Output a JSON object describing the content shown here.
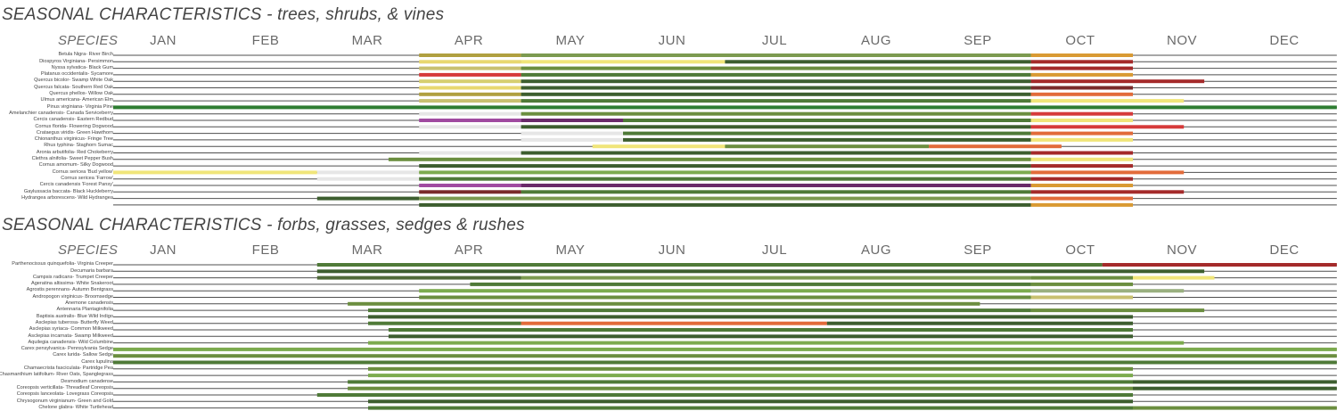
{
  "colors": {
    "dormant": "#4f4f4f",
    "evergreen": "#2e7d32",
    "leaf_light": "#7cab4e",
    "leaf_dark": "#3d5e2f",
    "flower_white": "#e6e6e6",
    "flower_yellow": "#f0e57a",
    "flower_pink": "#a04aa0",
    "fall_red": "#a42a2a",
    "fall_orange": "#e26b3a",
    "fall_gold": "#d99a33"
  },
  "months": [
    "JAN",
    "FEB",
    "MAR",
    "APR",
    "MAY",
    "JUN",
    "JUL",
    "AUG",
    "SEP",
    "OCT",
    "NOV",
    "DEC"
  ],
  "chart_data": [
    {
      "type": "gantt",
      "title": "SEASONAL CHARACTERISTICS - trees, shrubs, & vines",
      "species_header": "SPECIES",
      "x_unit": "month (0 = start of JAN, 12 = end of DEC)",
      "rows": [
        {
          "label": "Betula Nigra- River Birch",
          "segments": [
            [
              3,
              4,
              "#b0a040"
            ],
            [
              4,
              9,
              "#7c9a50"
            ],
            [
              9,
              10,
              "#d99a33"
            ]
          ]
        },
        {
          "label": "Diospyros Virginiana- Persimmon",
          "segments": [
            [
              3,
              4,
              "#e8d870"
            ],
            [
              4,
              6,
              "#f0e57a"
            ],
            [
              6,
              9,
              "#3d5e2f"
            ],
            [
              9,
              10,
              "#a42a2a"
            ]
          ]
        },
        {
          "label": "Nyssa sylvatica- Black Gum",
          "segments": [
            [
              3,
              4,
              "#c8c070"
            ],
            [
              4,
              9,
              "#6b8e3f"
            ],
            [
              9,
              10,
              "#a42a2a"
            ]
          ]
        },
        {
          "label": "Platanus occidentalis- Sycamore",
          "segments": [
            [
              3,
              4,
              "#d63a3a"
            ],
            [
              4,
              9,
              "#4f7a38"
            ],
            [
              9,
              10,
              "#d99a33"
            ]
          ]
        },
        {
          "label": "Quercus bicolor- Swamp White Oak",
          "segments": [
            [
              3,
              4,
              "#d6cf70"
            ],
            [
              4,
              9,
              "#3d5e2f"
            ],
            [
              9,
              10.7,
              "#a42a2a"
            ]
          ]
        },
        {
          "label": "Quercus falcata- Southern Red Oak",
          "segments": [
            [
              3,
              4,
              "#e8d870"
            ],
            [
              4,
              9,
              "#3d5e2f"
            ],
            [
              9,
              10,
              "#7a2a2a"
            ]
          ]
        },
        {
          "label": "Quercus phellos- Willow Oak",
          "segments": [
            [
              3,
              4,
              "#b0a040"
            ],
            [
              4,
              9,
              "#3d5e2f"
            ],
            [
              9,
              10,
              "#e26b3a"
            ]
          ]
        },
        {
          "label": "Ulmus americana- American Elm",
          "segments": [
            [
              3,
              4,
              "#c8c070"
            ],
            [
              4,
              9,
              "#4f7a38"
            ],
            [
              9,
              10.5,
              "#f0e57a"
            ]
          ]
        },
        {
          "label": "Pinus virginiana- Virginia Pine",
          "segments": [
            [
              0,
              12,
              "#2e7d32"
            ]
          ]
        },
        {
          "label": "Amelanchier canadensis- Canada Serviceberry",
          "segments": [
            [
              3,
              4,
              "#e6e6e6"
            ],
            [
              4,
              9,
              "#6b8e3f"
            ],
            [
              9,
              10,
              "#d63a3a"
            ]
          ]
        },
        {
          "label": "Cercis canadensis- Eastern Redbud",
          "segments": [
            [
              3,
              4,
              "#a04aa0"
            ],
            [
              4,
              5,
              "#6a2a6a"
            ],
            [
              5,
              9,
              "#4f7a38"
            ],
            [
              9,
              10,
              "#f0e57a"
            ]
          ]
        },
        {
          "label": "Cornus florida- Flowering Dogwood",
          "segments": [
            [
              3,
              4,
              "#e6e6e6"
            ],
            [
              4,
              9,
              "#3d5e2f"
            ],
            [
              9,
              10.5,
              "#d63a3a"
            ]
          ]
        },
        {
          "label": "Crataegus viridis- Green Hawthorn",
          "segments": [
            [
              4,
              5,
              "#e6e6e6"
            ],
            [
              5,
              9,
              "#4f7a38"
            ],
            [
              9,
              10,
              "#e26b3a"
            ]
          ]
        },
        {
          "label": "Chionanthus virginicus- Fringe Tree",
          "segments": [
            [
              4,
              5,
              "#e6e6e6"
            ],
            [
              5,
              9,
              "#3d5e2f"
            ],
            [
              9,
              10,
              "#f0e57a"
            ]
          ]
        },
        {
          "label": "Rhus typhina- Staghorn Sumac",
          "segments": [
            [
              4.7,
              6,
              "#f0e57a"
            ],
            [
              6,
              8,
              "#6b8e3f"
            ],
            [
              8,
              9.3,
              "#e26b3a"
            ]
          ]
        },
        {
          "label": "Aronia arbutifolia- Red Chokeberry",
          "segments": [
            [
              3,
              4,
              "#e6e6e6"
            ],
            [
              4,
              9,
              "#3d5e2f"
            ],
            [
              9,
              10,
              "#a42a2a"
            ]
          ]
        },
        {
          "label": "Clethra alnifolia- Sweet Pepper Bush",
          "segments": [
            [
              2.7,
              9,
              "#6b8e3f"
            ],
            [
              9,
              10,
              "#f0e57a"
            ]
          ]
        },
        {
          "label": "Cornus amomum- Silky Dogwood",
          "segments": [
            [
              3,
              9,
              "#3d5e2f"
            ],
            [
              9,
              10,
              "#a42a2a"
            ]
          ]
        },
        {
          "label": "Cornus sericea 'Bud yellow'",
          "segments": [
            [
              0,
              2,
              "#f0e57a"
            ],
            [
              2,
              3,
              "#e6e6e6"
            ],
            [
              3,
              9,
              "#7cab4e"
            ],
            [
              9,
              10.5,
              "#e26b3a"
            ]
          ]
        },
        {
          "label": "Cornus sericea 'Farrow'",
          "segments": [
            [
              2,
              3,
              "#e6e6e6"
            ],
            [
              3,
              9,
              "#4f7a38"
            ],
            [
              9,
              10,
              "#a42a2a"
            ]
          ]
        },
        {
          "label": "Cercis canadensis 'Forest Pansy'",
          "segments": [
            [
              3,
              4,
              "#a04aa0"
            ],
            [
              4,
              9,
              "#6a2a6a"
            ],
            [
              9,
              10,
              "#d99a33"
            ]
          ]
        },
        {
          "label": "Gaylussacia baccata- Black Huckleberry",
          "segments": [
            [
              3,
              4,
              "#7a2a2a"
            ],
            [
              4,
              9,
              "#4f7a38"
            ],
            [
              9,
              10.5,
              "#a42a2a"
            ]
          ]
        },
        {
          "label": "Hydrangea arborescens- Wild Hydrangea",
          "segments": [
            [
              2,
              3,
              "#3d5e2f"
            ],
            [
              3,
              9,
              "#7c9a50"
            ],
            [
              9,
              10,
              "#e26b3a"
            ]
          ]
        },
        {
          "label": "",
          "segments": [
            [
              3,
              9,
              "#3d5e2f"
            ],
            [
              9,
              10,
              "#d99a33"
            ]
          ]
        }
      ]
    },
    {
      "type": "gantt",
      "title": "SEASONAL CHARACTERISTICS - forbs, grasses, sedges & rushes",
      "species_header": "SPECIES",
      "x_unit": "month (0 = start of JAN, 12 = end of DEC)",
      "rows": [
        {
          "label": "Parthenocissus quinquefolia- Virginia Creeper",
          "segments": [
            [
              2,
              9.7,
              "#4f7a38"
            ],
            [
              9.7,
              12,
              "#a42a2a"
            ]
          ]
        },
        {
          "label": "Decumaria barbara",
          "segments": [
            [
              2,
              10,
              "#3d5e2f"
            ],
            [
              10,
              10.7,
              "#3d5e2f"
            ]
          ]
        },
        {
          "label": "Campsis radicans- Trumpet Creeper",
          "segments": [
            [
              2,
              4,
              "#4f6a38"
            ],
            [
              4,
              9,
              "#7c9a50"
            ],
            [
              9,
              10,
              "#6b8e3f"
            ],
            [
              10,
              10.8,
              "#f0e57a"
            ]
          ]
        },
        {
          "label": "Ageratina altissima- White Snakeroot",
          "segments": [
            [
              3.5,
              9,
              "#4f7a38"
            ],
            [
              9,
              10,
              "#6b8e3f"
            ]
          ]
        },
        {
          "label": "Agrostis perennans- Autumn Bentgrass",
          "segments": [
            [
              3,
              9,
              "#7cab4e"
            ],
            [
              9,
              10.5,
              "#9ab080"
            ]
          ]
        },
        {
          "label": "Andropogon virginicus- Broomsedge",
          "segments": [
            [
              3,
              9,
              "#6b8e3f"
            ],
            [
              9,
              10,
              "#c8c070"
            ]
          ]
        },
        {
          "label": "Anemone canadensis",
          "segments": [
            [
              2.3,
              8.5,
              "#6b8e3f"
            ]
          ]
        },
        {
          "label": "Antennaria Plantaginifolia",
          "segments": [
            [
              2.5,
              9,
              "#4f7a38"
            ],
            [
              9,
              10.7,
              "#6b8e3f"
            ]
          ]
        },
        {
          "label": "Baptisia australis- Blue Wild Indigo",
          "segments": [
            [
              2.5,
              10,
              "#3d5e2f"
            ]
          ]
        },
        {
          "label": "Asclepias tuberosa- Butterfly Weed",
          "segments": [
            [
              2.5,
              4,
              "#4f7a38"
            ],
            [
              4,
              7,
              "#e26b3a"
            ],
            [
              7,
              10,
              "#3d5e2f"
            ]
          ]
        },
        {
          "label": "Asclepias syriaca- Common Milkweed",
          "segments": [
            [
              2.7,
              10,
              "#4f7a38"
            ]
          ]
        },
        {
          "label": "Asclepias incarnata- Swamp Milkweed",
          "segments": [
            [
              2.7,
              10,
              "#3d5e2f"
            ]
          ]
        },
        {
          "label": "Aquilegia canadensis- Wild Columbine",
          "segments": [
            [
              2.5,
              10.5,
              "#7cab4e"
            ]
          ]
        },
        {
          "label": "Carex pensylvanica- Pennsylvania Sedge",
          "segments": [
            [
              0,
              12,
              "#7cab4e"
            ]
          ]
        },
        {
          "label": "Carex lurida- Sallow Sedge",
          "segments": [
            [
              0,
              12,
              "#6b8e3f"
            ]
          ]
        },
        {
          "label": "Carex lupulina",
          "segments": [
            [
              0,
              12,
              "#4f7a38"
            ]
          ]
        },
        {
          "label": "Chamaecrista fasciculata- Partridge Pea",
          "segments": [
            [
              2.5,
              10,
              "#6b8e3f"
            ]
          ]
        },
        {
          "label": "Chasmanthium latifolium- River Oats, Spanglegrass",
          "segments": [
            [
              2.5,
              10,
              "#7cab4e"
            ]
          ]
        },
        {
          "label": "Desmodium canadense",
          "segments": [
            [
              2.3,
              10,
              "#4f7a38"
            ],
            [
              10,
              12,
              "#3d5e2f"
            ]
          ]
        },
        {
          "label": "Coreopsis verticillata- Threadleaf Coreopsis",
          "segments": [
            [
              2.3,
              10,
              "#6b8e3f"
            ],
            [
              10,
              12,
              "#3d5e2f"
            ]
          ]
        },
        {
          "label": "Coreopsis lanceolata- Lovegrass Coreopsis",
          "segments": [
            [
              2,
              10,
              "#4f7a38"
            ]
          ]
        },
        {
          "label": "Chrysogonum virginianum- Green and Gold",
          "segments": [
            [
              2.5,
              10,
              "#3d5e2f"
            ]
          ]
        },
        {
          "label": "Chelone glabra- White Turtlehead",
          "segments": [
            [
              2.5,
              10,
              "#4f7a38"
            ],
            [
              10,
              12,
              "#6b8e3f"
            ]
          ]
        }
      ]
    }
  ]
}
